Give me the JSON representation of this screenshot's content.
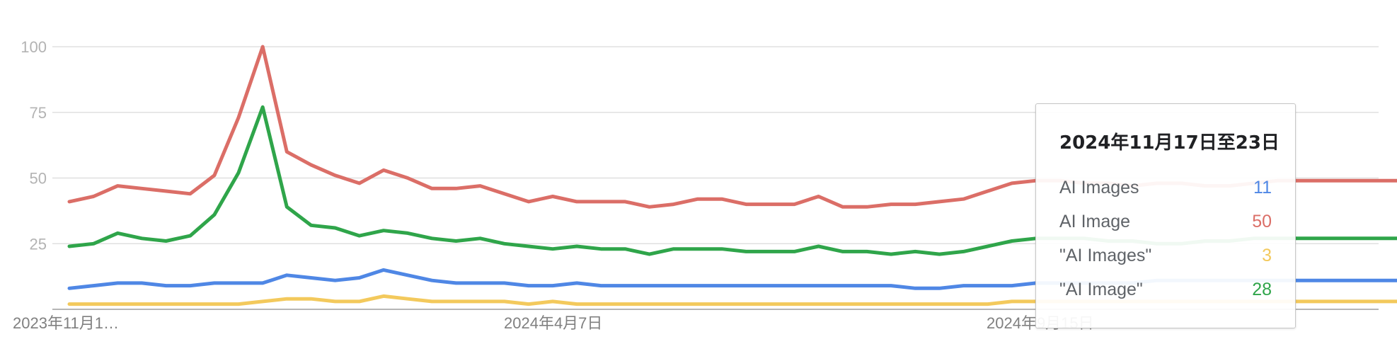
{
  "chart_data": {
    "type": "line",
    "yticks": [
      25,
      50,
      75,
      100
    ],
    "ylim": [
      0,
      100
    ],
    "x_tick_labels": [
      "2023年11月1…",
      "2024年4月7日",
      "2024年9月15日"
    ],
    "grid": true,
    "series": [
      {
        "name": "AI Images",
        "color": "#4f87e5",
        "values": [
          8,
          9,
          10,
          10,
          9,
          9,
          10,
          10,
          10,
          13,
          12,
          11,
          12,
          15,
          13,
          11,
          10,
          10,
          10,
          9,
          9,
          10,
          9,
          9,
          9,
          9,
          9,
          9,
          9,
          9,
          9,
          9,
          9,
          9,
          9,
          8,
          8,
          9,
          9,
          9,
          10,
          10,
          10,
          10,
          10,
          11,
          11,
          11,
          11,
          11,
          11,
          11,
          11,
          11,
          11,
          11,
          11,
          11,
          10
        ]
      },
      {
        "name": "AI Image",
        "color": "#db6e67",
        "values": [
          41,
          43,
          47,
          46,
          45,
          44,
          51,
          73,
          100,
          60,
          55,
          51,
          48,
          53,
          50,
          46,
          46,
          47,
          44,
          41,
          43,
          41,
          41,
          41,
          39,
          40,
          42,
          42,
          40,
          40,
          40,
          43,
          39,
          39,
          40,
          40,
          41,
          42,
          45,
          48,
          49,
          49,
          48,
          48,
          47,
          48,
          48,
          47,
          47,
          48,
          49,
          49,
          49,
          49,
          49,
          49,
          50,
          50,
          47
        ]
      },
      {
        "name": "\"AI Images\"",
        "color": "#f3c95c",
        "values": [
          2,
          2,
          2,
          2,
          2,
          2,
          2,
          2,
          3,
          4,
          4,
          3,
          3,
          5,
          4,
          3,
          3,
          3,
          3,
          2,
          3,
          2,
          2,
          2,
          2,
          2,
          2,
          2,
          2,
          2,
          2,
          2,
          2,
          2,
          2,
          2,
          2,
          2,
          2,
          3,
          3,
          3,
          3,
          3,
          3,
          3,
          3,
          3,
          3,
          3,
          3,
          3,
          3,
          3,
          3,
          3,
          3,
          3,
          2
        ]
      },
      {
        "name": "\"AI Image\"",
        "color": "#2fa54a",
        "values": [
          24,
          25,
          29,
          27,
          26,
          28,
          36,
          52,
          77,
          39,
          32,
          31,
          28,
          30,
          29,
          27,
          26,
          27,
          25,
          24,
          23,
          24,
          23,
          23,
          21,
          23,
          23,
          23,
          22,
          22,
          22,
          24,
          22,
          22,
          21,
          22,
          21,
          22,
          24,
          26,
          27,
          27,
          27,
          26,
          26,
          25,
          25,
          26,
          26,
          27,
          27,
          27,
          27,
          27,
          27,
          27,
          28,
          28,
          26
        ]
      }
    ],
    "highlight_index": 57,
    "tooltip": {
      "date": "2024年11月17日至23日",
      "rows": [
        {
          "name": "AI Images",
          "value": "11",
          "color": "#4f87e5"
        },
        {
          "name": "AI Image",
          "value": "50",
          "color": "#db6e67"
        },
        {
          "name": "\"AI Images\"",
          "value": "3",
          "color": "#f3c95c"
        },
        {
          "name": "\"AI Image\"",
          "value": "28",
          "color": "#2fa54a"
        }
      ]
    }
  }
}
